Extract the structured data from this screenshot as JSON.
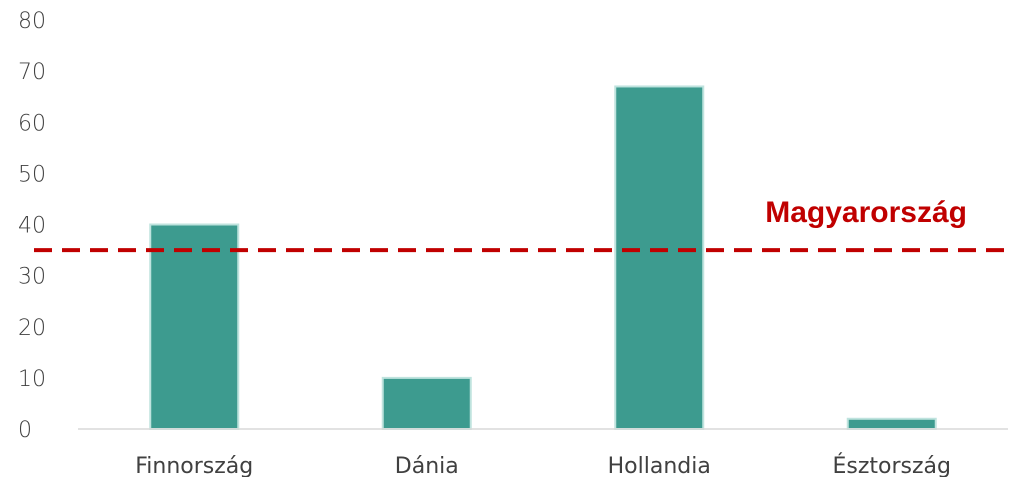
{
  "chart_data": {
    "type": "bar",
    "categories": [
      "Finnország",
      "Dánia",
      "Hollandia",
      "Észtország"
    ],
    "values": [
      40,
      10,
      67,
      2
    ],
    "ylim": [
      0,
      80
    ],
    "yticks": [
      0,
      10,
      20,
      30,
      40,
      50,
      60,
      70,
      80
    ],
    "grid": false,
    "bar_color": "#3d9b8f",
    "bar_edge_color": "#bfe3de",
    "reference_line": {
      "label": "Magyarország",
      "value": 35,
      "color": "#c00000",
      "style": "dashed"
    }
  }
}
